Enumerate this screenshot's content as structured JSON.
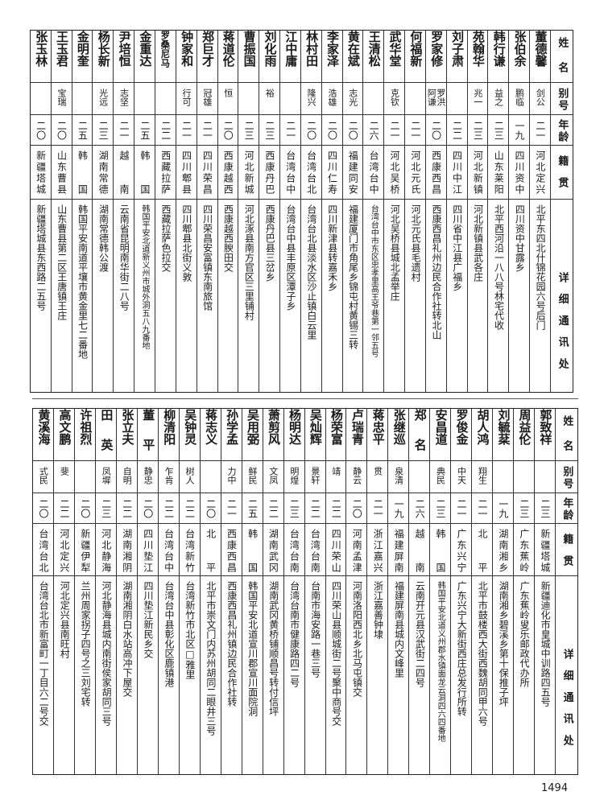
{
  "headers": {
    "name": "姓名",
    "alias": "别号",
    "age": "年龄",
    "native": "籍贯",
    "address": "详细通讯处"
  },
  "top_table": [
    {
      "name": "董德馨",
      "alias": "剑公",
      "age": "二一",
      "native": "河北定兴",
      "address": "北平东四北什锦花园六号后门"
    },
    {
      "name": "张伯余",
      "alias": "鹏临",
      "age": "一九",
      "native": "四川资中",
      "address": "四川资中甘露乡"
    },
    {
      "name": "韩行谦",
      "alias": "益之",
      "age": "二三",
      "native": "山东莱阳",
      "address": "北平西河沿一八八号林宅代收"
    },
    {
      "name": "苑翰华",
      "alias": "兆一",
      "age": "二三",
      "native": "河北新镇",
      "address": "河北新镇县武各庄"
    },
    {
      "name": "刘子肃",
      "alias": "",
      "age": "二二",
      "native": "四川中江",
      "address": "四川省中江县广福乡"
    },
    {
      "name": "罗家修",
      "alias": "罗洪阿谦",
      "age": "二〇",
      "native": "西康西昌",
      "address": "西康西昌礼州边民合作社转北山"
    },
    {
      "name": "何福新",
      "alias": "",
      "age": "二一",
      "native": "河北元氏",
      "address": "河北元氏县毛遗村"
    },
    {
      "name": "武华堂",
      "alias": "克钦",
      "age": "二一",
      "native": "河北吴桥",
      "address": "河北吴桥县城北孟举庄"
    },
    {
      "name": "王清松",
      "alias": "",
      "age": "二六",
      "native": "台湾台中",
      "address": "台湾台中市东区忠孝里高王爷巷第一邻五号"
    },
    {
      "name": "黄在斌",
      "alias": "志光",
      "age": "二〇",
      "native": "福建同安",
      "address": "福建厦门市角尾乡锦屯村黄锡三转"
    },
    {
      "name": "李家泽",
      "alias": "浩雄",
      "age": "二〇",
      "native": "四川仁寿",
      "address": "四川新津县转嘉禾乡"
    },
    {
      "name": "林村田",
      "alias": "隆兴",
      "age": "二〇",
      "native": "台湾台北",
      "address": "台湾台北县淡水区沙止镇白云里"
    },
    {
      "name": "江中庸",
      "alias": "",
      "age": "二一",
      "native": "台湾台中",
      "address": "台湾台中县丰原区潭子乡"
    },
    {
      "name": "刘化雨",
      "alias": "裕",
      "age": "二三",
      "native": "西康丹巴",
      "address": "西康丹巴县三岔乡"
    },
    {
      "name": "曹振国",
      "alias": "",
      "age": "二三",
      "native": "河北新城",
      "address": "河北涿县南方官区三里铺村"
    },
    {
      "name": "蒋道伦",
      "alias": "恒",
      "age": "二〇",
      "native": "西康越西",
      "address": "西康越西腴田交"
    },
    {
      "name": "郑巨才",
      "alias": "冠雄",
      "age": "二一",
      "native": "四川荣昌",
      "address": "四川荣昌安富镇东南旅馆"
    },
    {
      "name": "钟家和",
      "alias": "行可",
      "age": "二一",
      "native": "四川郫县",
      "address": "四川郫县北街义敦"
    },
    {
      "name": "罗桑尼马",
      "alias": "",
      "age": "二二",
      "native": "西藏拉萨",
      "address": "西藏拉萨色拉交"
    },
    {
      "name": "金重达",
      "alias": "",
      "age": "二五",
      "native": "韩国",
      "address": "韩国平安北道新义州市城外洞五八九番地"
    },
    {
      "name": "尹培恒",
      "alias": "志坚",
      "age": "二一",
      "native": "越南",
      "address": "云南省昆明南华街二八号"
    },
    {
      "name": "杨长新",
      "alias": "光远",
      "age": "二三",
      "native": "湖南常德",
      "address": "湖南常德韩公渡"
    },
    {
      "name": "金明奎",
      "alias": "",
      "age": "二五",
      "native": "韩国",
      "address": "韩国平安南道平壤市黄金里七二番地"
    },
    {
      "name": "王玉君",
      "alias": "宝瑞",
      "age": "二〇",
      "native": "山东曹县",
      "address": "山东曹县第二区王唐镇王庄"
    },
    {
      "name": "张玉林",
      "alias": "",
      "age": "二〇",
      "native": "新疆塔城",
      "address": "新疆塔城县东西路二五号"
    }
  ],
  "bottom_table": [
    {
      "name": "郭致祥",
      "alias": "",
      "age": "二三",
      "native": "新疆塔城",
      "address": "新疆迪化市皇城中训路四五号"
    },
    {
      "name": "周益伦",
      "alias": "",
      "age": "二三",
      "native": "广东蕉岭",
      "address": "广东蕉岭叟乐邮政代办所"
    },
    {
      "name": "刘毓棻",
      "alias": "",
      "age": "一九",
      "native": "湖南湘乡",
      "address": "湖南湘乡碧溪乡第十保推子坪"
    },
    {
      "name": "胡人鸿",
      "alias": "翔生",
      "age": "二一",
      "native": "北平",
      "address": "北平市鼓楼西大街西魏胡同甲六号"
    },
    {
      "name": "罗俊金",
      "alias": "中天",
      "age": "二一",
      "native": "广东兴宁",
      "address": "广东兴宁大新街西庄总发行所转"
    },
    {
      "name": "安昌道",
      "alias": "典民",
      "age": "二三",
      "native": "韩国",
      "address": "韩国平安北道义州郡水镇面龙云洞四六四番地"
    },
    {
      "name": "郑名",
      "alias": "",
      "age": "二六",
      "native": "越南",
      "address": "云南开元县汉武街二四号"
    },
    {
      "name": "张继巡",
      "alias": "泉清",
      "age": "一九",
      "native": "福建屏南",
      "address": "福建屏南县城内文峰里"
    },
    {
      "name": "蒋忠平",
      "alias": "贯",
      "age": "二一",
      "native": "浙江嘉兴",
      "address": "浙江嘉善钟埭"
    },
    {
      "name": "卢瑞青",
      "alias": "静云",
      "age": "二〇",
      "native": "河南孟津",
      "address": "河南洛阳西北乡北马屯镇交"
    },
    {
      "name": "杨荣富",
      "alias": "靖",
      "age": "二二",
      "native": "四川荣山",
      "address": "四川荣山县顺城街二号聚中商号交"
    },
    {
      "name": "吴灿辉",
      "alias": "景轩",
      "age": "二二",
      "native": "台湾台南",
      "address": "台南市海安路一巷三号"
    },
    {
      "name": "杨明达",
      "alias": "明煌",
      "age": "二三",
      "native": "台湾台南",
      "address": "台湾台南市健康路四二号"
    },
    {
      "name": "萧剪风",
      "alias": "文凤",
      "age": "二二",
      "native": "湖南武冈",
      "address": "湖南武冈黄桥铺顺昌号转付信坪"
    },
    {
      "name": "吴用弼",
      "alias": "鲜民",
      "age": "二五",
      "native": "韩国",
      "address": "韩国平安北道宣川郡宣川面院洞"
    },
    {
      "name": "孙学孟",
      "alias": "力中",
      "age": "二一",
      "native": "西康西昌",
      "address": "西康西昌礼州镇边民合作社转"
    },
    {
      "name": "蒋志义",
      "alias": "",
      "age": "二〇",
      "native": "北平",
      "address": "北平市崇文门内苏州胡同二眼井三号"
    },
    {
      "name": "吴钟灵",
      "alias": "树人",
      "age": "二二",
      "native": "台湾新竹",
      "address": "台湾新竹市北区□雅里"
    },
    {
      "name": "柳清阳",
      "alias": "乍肯",
      "age": "二二",
      "native": "台湾台中",
      "address": "台湾台中县彰化区鹿镇港"
    },
    {
      "name": "董平",
      "alias": "静忠",
      "age": "二〇",
      "native": "四川垫江",
      "address": "四川垫江新民乡交"
    },
    {
      "name": "张立夫",
      "alias": "自明",
      "age": "二二",
      "native": "湖南湘阴",
      "address": "湖南湘阴白水站高冲下屋交"
    },
    {
      "name": "田英",
      "alias": "凤墀",
      "age": "二三",
      "native": "河北静海",
      "address": "河北静海县城内南街侯家胡同三号"
    },
    {
      "name": "许祖烈",
      "alias": "",
      "age": "二〇",
      "native": "新疆伊犁",
      "address": "兰州周家拐子四号之三刘宅转"
    },
    {
      "name": "高文鹏",
      "alias": "斐",
      "age": "二二",
      "native": "河北定兴",
      "address": "河北定兴县南旺村"
    },
    {
      "name": "黄溪海",
      "alias": "式民",
      "age": "二〇",
      "native": "台湾台北",
      "address": "台湾台北市新富町一丁目六二号交"
    }
  ],
  "page_number": "1494"
}
